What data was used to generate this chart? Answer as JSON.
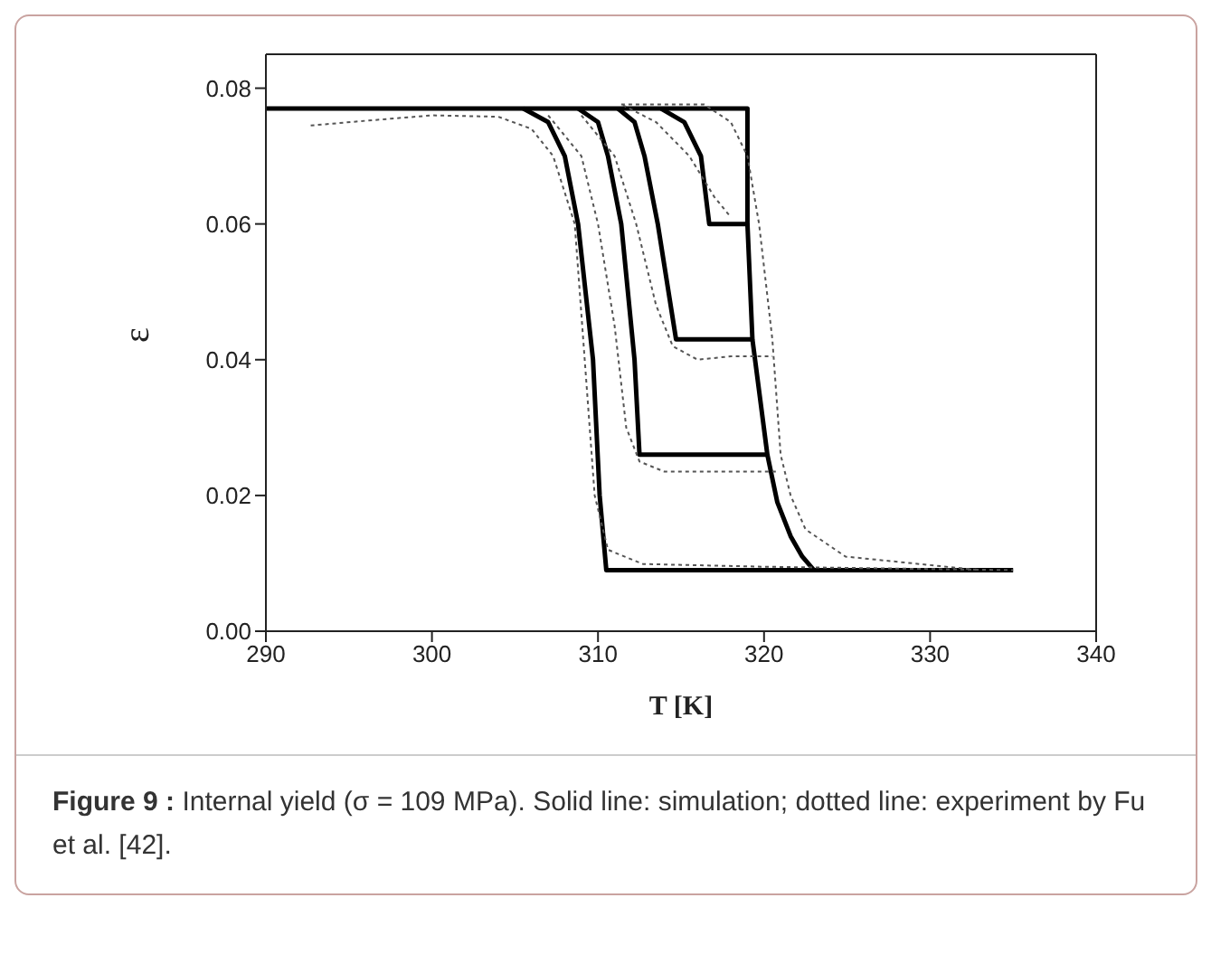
{
  "chart_data": {
    "type": "line",
    "xlabel": "T [K]",
    "ylabel": "ε",
    "xlim": [
      290,
      340
    ],
    "ylim": [
      0,
      0.085
    ],
    "xticks": [
      290,
      300,
      310,
      320,
      330,
      340
    ],
    "yticks": [
      {
        "value": 0,
        "label": "0.00"
      },
      0.02,
      0.04,
      0.06,
      0.08
    ],
    "marker": "none",
    "annotations": [
      "Figure 9 :",
      "Internal yield (σ = 109 MPa). Solid line: simulation; dotted line: experiment by Fu et al. [42]."
    ],
    "series": [
      {
        "color": "#000000",
        "line_style": "solid",
        "x": [
          290,
          319,
          319,
          319.3,
          320.2,
          320.8,
          321.6,
          322.3,
          323,
          335
        ],
        "values": [
          0.077,
          0.077,
          0.06,
          0.043,
          0.026,
          0.019,
          0.014,
          0.011,
          0.009,
          0.009
        ]
      },
      {
        "color": "#000000",
        "line_style": "solid",
        "x": [
          305.5,
          307,
          308,
          308.8,
          309.7,
          310.1,
          310.5,
          323
        ],
        "values": [
          0.077,
          0.075,
          0.07,
          0.06,
          0.04,
          0.02,
          0.009,
          0.009
        ]
      },
      {
        "color": "#000000",
        "line_style": "solid",
        "x": [
          308.8,
          310,
          310.6,
          311.4,
          312.2,
          312.5,
          320.2
        ],
        "values": [
          0.077,
          0.075,
          0.07,
          0.06,
          0.04,
          0.026,
          0.026
        ]
      },
      {
        "color": "#000000",
        "line_style": "solid",
        "x": [
          311.2,
          312.2,
          312.8,
          313.6,
          314.7,
          319.3
        ],
        "values": [
          0.077,
          0.075,
          0.07,
          0.06,
          0.043,
          0.043
        ]
      },
      {
        "color": "#000000",
        "line_style": "solid",
        "x": [
          313.8,
          315.2,
          316.2,
          316.7,
          319
        ],
        "values": [
          0.077,
          0.075,
          0.07,
          0.06,
          0.06
        ]
      },
      {
        "color": "#555555",
        "line_style": "dotted",
        "x": [
          292.7,
          296,
          300,
          304,
          306,
          307.3,
          308.6,
          309.2,
          309.8,
          310.6,
          312.7,
          320,
          335
        ],
        "values": [
          0.0745,
          0.0752,
          0.076,
          0.0758,
          0.074,
          0.07,
          0.06,
          0.04,
          0.02,
          0.012,
          0.0099,
          0.0095,
          0.009
        ]
      },
      {
        "color": "#555555",
        "line_style": "dotted",
        "x": [
          311.4,
          316.4,
          318,
          319,
          319.7,
          320.5,
          321,
          321.6,
          322.5,
          324.9,
          333
        ],
        "values": [
          0.0776,
          0.0776,
          0.075,
          0.07,
          0.06,
          0.043,
          0.026,
          0.02,
          0.015,
          0.011,
          0.009
        ]
      },
      {
        "color": "#555555",
        "line_style": "dotted",
        "x": [
          307,
          309,
          310,
          311,
          311.7,
          312.5,
          314,
          317,
          320.8
        ],
        "values": [
          0.076,
          0.07,
          0.06,
          0.045,
          0.03,
          0.025,
          0.0235,
          0.0235,
          0.0235
        ]
      },
      {
        "color": "#555555",
        "line_style": "dotted",
        "x": [
          309,
          311,
          312.3,
          313.5,
          314.5,
          316,
          318,
          320.5
        ],
        "values": [
          0.076,
          0.07,
          0.06,
          0.048,
          0.042,
          0.04,
          0.0405,
          0.0405
        ]
      },
      {
        "color": "#555555",
        "line_style": "dotted",
        "x": [
          311.5,
          313.5,
          315.5,
          317,
          318
        ],
        "values": [
          0.0775,
          0.075,
          0.07,
          0.064,
          0.061
        ]
      }
    ]
  }
}
